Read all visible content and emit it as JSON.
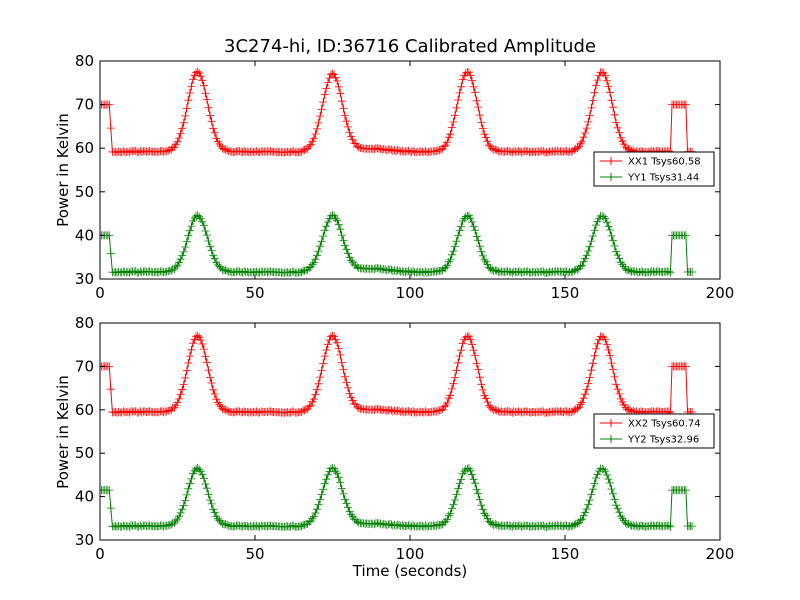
{
  "figure": {
    "title": "3C274-hi, ID:36716 Calibrated Amplitude",
    "xlabel": "Time (seconds)",
    "ylabel_top": "Power in Kelvin",
    "ylabel_bottom": "Power in Kelvin"
  },
  "chart_data": [
    {
      "type": "line",
      "marker": "plus",
      "title": "3C274-hi, ID:36716 Calibrated Amplitude",
      "xlabel": "",
      "ylabel": "Power in Kelvin",
      "xlim": [
        0,
        200
      ],
      "ylim": [
        30,
        80
      ],
      "xticks": [
        0,
        50,
        100,
        150,
        200
      ],
      "yticks": [
        30,
        40,
        50,
        60,
        70,
        80
      ],
      "grid": false,
      "legend_position": "center-right",
      "x_range": [
        0,
        191
      ],
      "x_step": 0.5,
      "series": [
        {
          "name": "XX1 Tsys60.58",
          "color": "#ff0000",
          "baseline": 59.2,
          "off_source_level": 70,
          "peaks": [
            {
              "x": 31.5,
              "y": 77.5
            },
            {
              "x": 75.0,
              "y": 77.0
            },
            {
              "x": 118.5,
              "y": 77.5
            },
            {
              "x": 162.0,
              "y": 77.5
            }
          ],
          "bump": {
            "x": 87,
            "y": 59.9
          }
        },
        {
          "name": "YY1 Tsys31.44",
          "color": "#008000",
          "baseline": 31.6,
          "off_source_level": 40,
          "peaks": [
            {
              "x": 31.5,
              "y": 44.5
            },
            {
              "x": 75.0,
              "y": 44.5
            },
            {
              "x": 118.5,
              "y": 44.5
            },
            {
              "x": 162.0,
              "y": 44.5
            }
          ],
          "bump": {
            "x": 87,
            "y": 32.4
          }
        }
      ]
    },
    {
      "type": "line",
      "marker": "plus",
      "title": "",
      "xlabel": "Time (seconds)",
      "ylabel": "Power in Kelvin",
      "xlim": [
        0,
        200
      ],
      "ylim": [
        30,
        80
      ],
      "xticks": [
        0,
        50,
        100,
        150,
        200
      ],
      "yticks": [
        30,
        40,
        50,
        60,
        70,
        80
      ],
      "grid": false,
      "legend_position": "center-right",
      "x_range": [
        0,
        191
      ],
      "x_step": 0.5,
      "series": [
        {
          "name": "XX2 Tsys60.74",
          "color": "#ff0000",
          "baseline": 59.5,
          "off_source_level": 70,
          "peaks": [
            {
              "x": 31.5,
              "y": 77.0
            },
            {
              "x": 75.0,
              "y": 77.0
            },
            {
              "x": 118.5,
              "y": 77.0
            },
            {
              "x": 162.0,
              "y": 77.0
            }
          ],
          "bump": {
            "x": 87,
            "y": 60.1
          }
        },
        {
          "name": "YY2 Tsys32.96",
          "color": "#008000",
          "baseline": 33.2,
          "off_source_level": 41.5,
          "peaks": [
            {
              "x": 31.5,
              "y": 46.5
            },
            {
              "x": 75.0,
              "y": 46.5
            },
            {
              "x": 118.5,
              "y": 46.5
            },
            {
              "x": 162.0,
              "y": 46.5
            }
          ],
          "bump": {
            "x": 87,
            "y": 33.8
          }
        }
      ]
    }
  ]
}
